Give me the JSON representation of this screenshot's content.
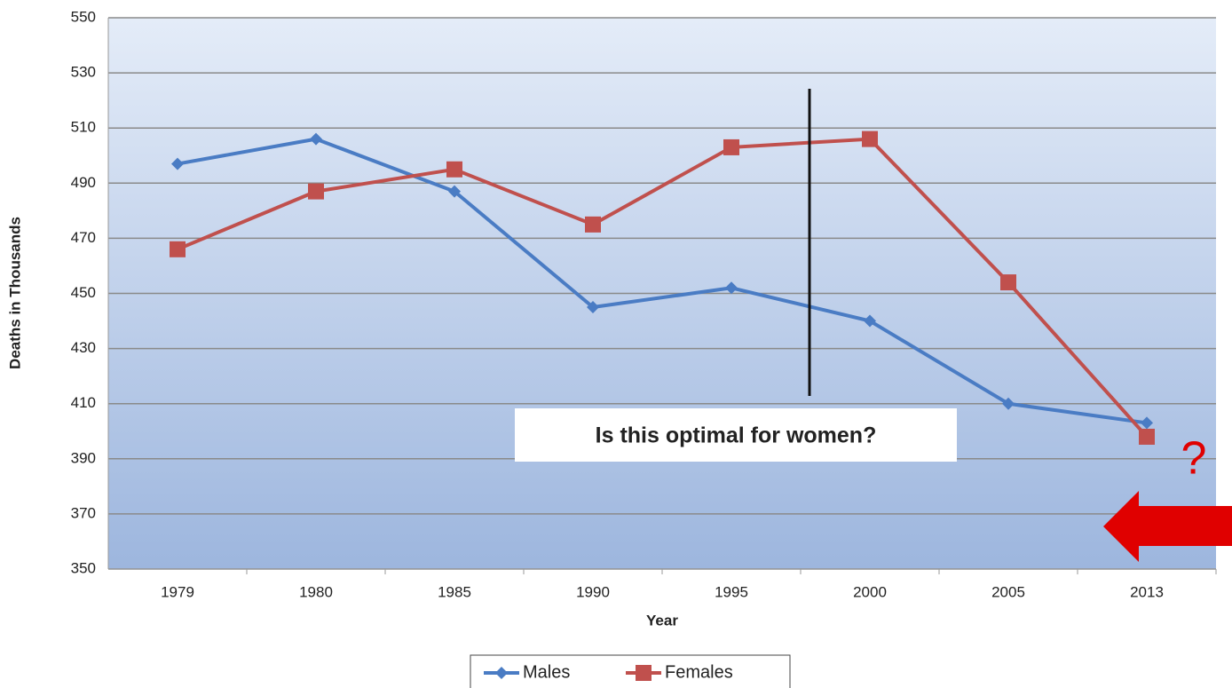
{
  "chart_data": {
    "type": "line",
    "y_label": "Deaths in Thousands",
    "x_label": "Year",
    "categories": [
      "1979",
      "1980",
      "1985",
      "1990",
      "1995",
      "2000",
      "2005",
      "2013"
    ],
    "series": [
      {
        "name": "Males",
        "color": "#4a7cc4",
        "values": [
          497,
          506,
          487,
          445,
          452,
          440,
          410,
          403
        ]
      },
      {
        "name": "Females",
        "color": "#c0504d",
        "values": [
          466,
          487,
          495,
          475,
          503,
          506,
          454,
          398
        ]
      }
    ],
    "ylim": [
      350,
      550
    ],
    "yticks": [
      350,
      370,
      390,
      410,
      430,
      450,
      470,
      490,
      510,
      530,
      550
    ],
    "grid": true,
    "annotations": [
      "Is this optimal for women?",
      "?"
    ]
  }
}
